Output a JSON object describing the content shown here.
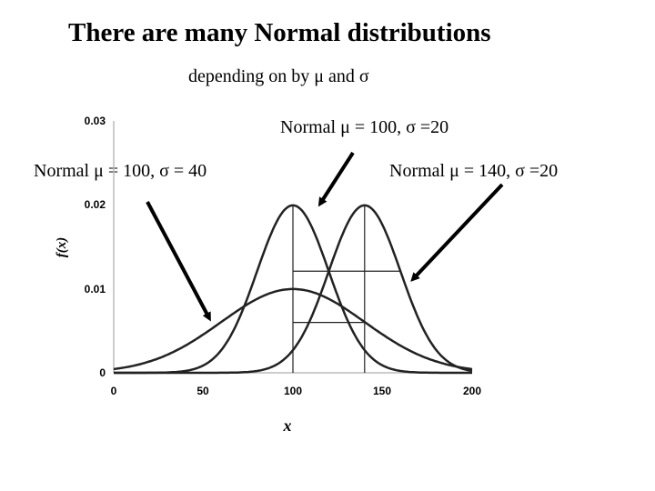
{
  "header": {
    "title": "There are many Normal distributions",
    "subtitle": "depending on by μ and σ"
  },
  "annotations": [
    {
      "label": "Normal μ = 100, σ =20",
      "target_series": 0
    },
    {
      "label": "Normal μ = 100, σ = 40",
      "target_series": 1
    },
    {
      "label": "Normal μ = 140, σ =20",
      "target_series": 2
    }
  ],
  "chart_data": {
    "type": "line",
    "title": "",
    "xlabel": "x",
    "ylabel": "f(x)",
    "xlim": [
      0,
      200
    ],
    "ylim": [
      0,
      0.03
    ],
    "x_ticks": [
      "0",
      "50",
      "100",
      "150",
      "200"
    ],
    "y_ticks": [
      "0",
      "0.01",
      "0.02",
      "0.03"
    ],
    "grid": false,
    "line_color": "#222222",
    "series": [
      {
        "mu": 100,
        "sigma": 20
      },
      {
        "mu": 100,
        "sigma": 40
      },
      {
        "mu": 140,
        "sigma": 20
      }
    ],
    "reference_lines": [
      {
        "type": "vertical",
        "x": 100
      },
      {
        "type": "vertical",
        "x": 140
      },
      {
        "type": "horizontal",
        "x_from": 100,
        "x_to": 140,
        "y": 0.0121
      },
      {
        "type": "horizontal",
        "x_from": 140,
        "x_to": 160,
        "y": 0.0121
      },
      {
        "type": "horizontal",
        "x_from": 100,
        "x_to": 140,
        "y": 0.006
      }
    ]
  }
}
